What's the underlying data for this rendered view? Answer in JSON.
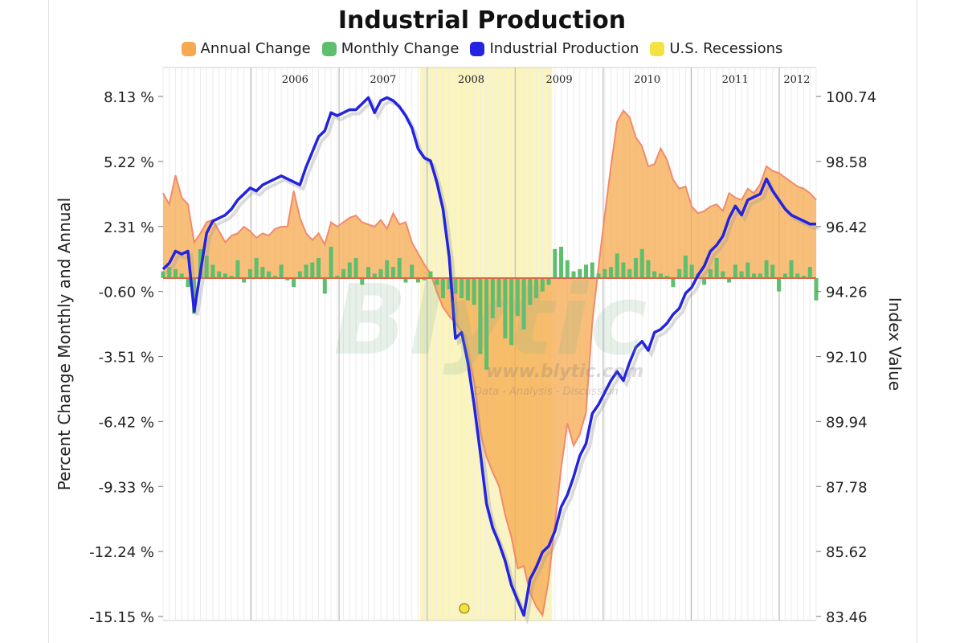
{
  "chart_data": {
    "type": "area",
    "title": "Industrial Production",
    "ylabel_left": "Percent Change Monthly and Annual",
    "ylabel_right": "Index Value",
    "legend": [
      {
        "name": "Annual Change",
        "color": "#f6a94e"
      },
      {
        "name": "Monthly Change",
        "color": "#5dbf6e"
      },
      {
        "name": "Industrial Production",
        "color": "#2323e0"
      },
      {
        "name": "U.S. Recessions",
        "color": "#f4e241"
      }
    ],
    "left_axis": {
      "ticks": [
        "8.13 %",
        "5.22 %",
        "2.31 %",
        "-0.60 %",
        "-3.51 %",
        "-6.42 %",
        "-9.33 %",
        "-12.24 %",
        "-15.15 %"
      ],
      "range": [
        -15.15,
        8.13
      ]
    },
    "right_axis": {
      "ticks": [
        "100.74",
        "98.58",
        "96.42",
        "94.26",
        "92.10",
        "89.94",
        "87.78",
        "85.62",
        "83.46"
      ],
      "range": [
        83.46,
        100.74
      ]
    },
    "x_range": [
      2005.0,
      2012.42
    ],
    "year_labels": [
      {
        "label": "2006",
        "x": 2006.5
      },
      {
        "label": "2007",
        "x": 2007.5
      },
      {
        "label": "2008",
        "x": 2008.5
      },
      {
        "label": "2009",
        "x": 2009.5
      },
      {
        "label": "2010",
        "x": 2010.5
      },
      {
        "label": "2011",
        "x": 2011.5
      },
      {
        "label": "2012",
        "x": 2012.2
      }
    ],
    "recession": {
      "start": 2007.92,
      "end": 2009.42
    },
    "series": [
      {
        "name": "Annual Change",
        "values": [
          3.8,
          3.3,
          4.6,
          3.6,
          3.3,
          1.6,
          2.0,
          2.5,
          2.6,
          2.1,
          1.6,
          1.9,
          2.0,
          2.3,
          2.1,
          1.8,
          2.0,
          1.9,
          2.2,
          2.3,
          2.3,
          3.9,
          2.7,
          2.0,
          1.7,
          2.0,
          1.5,
          2.5,
          2.3,
          2.5,
          2.7,
          2.8,
          2.5,
          2.4,
          2.3,
          2.6,
          2.2,
          2.9,
          2.4,
          2.5,
          1.6,
          1.1,
          0.6,
          0.2,
          -0.6,
          -1.3,
          -1.7,
          -2.0,
          -2.4,
          -3.5,
          -4.6,
          -6.9,
          -8.0,
          -8.7,
          -9.3,
          -10.6,
          -11.6,
          -13.0,
          -12.9,
          -14.1,
          -14.7,
          -15.1,
          -13.5,
          -11.0,
          -8.5,
          -6.5,
          -7.5,
          -7.0,
          -6.0,
          -2.0,
          0.5,
          2.8,
          5.0,
          7.0,
          7.5,
          7.2,
          6.3,
          5.9,
          5.0,
          5.1,
          5.8,
          5.3,
          4.4,
          4.0,
          4.1,
          3.2,
          2.9,
          3.0,
          3.2,
          3.3,
          3.0,
          3.8,
          3.6,
          3.5,
          4.0,
          3.8,
          4.2,
          5.0,
          4.8,
          4.7,
          4.5,
          4.3,
          4.1,
          4.0,
          3.8,
          3.5
        ]
      },
      {
        "name": "Monthly Change",
        "values": [
          0.3,
          0.5,
          0.4,
          0.2,
          -0.4,
          -1.6,
          1.3,
          1.0,
          0.6,
          0.3,
          0.2,
          0.1,
          0.8,
          -0.2,
          0.4,
          0.9,
          0.5,
          0.3,
          0.1,
          0.6,
          -0.1,
          -0.4,
          0.3,
          0.6,
          0.7,
          0.9,
          -0.7,
          1.4,
          0.1,
          0.4,
          0.7,
          0.9,
          -0.3,
          0.5,
          0.2,
          0.4,
          0.8,
          0.5,
          0.9,
          -0.2,
          0.6,
          -0.2,
          -0.1,
          0.3,
          -0.3,
          -0.9,
          -0.5,
          -0.7,
          -0.9,
          -1.0,
          -1.2,
          -3.4,
          -4.1,
          -1.8,
          -1.3,
          -2.7,
          -3.0,
          -1.7,
          -2.3,
          -1.2,
          -0.9,
          -0.6,
          -0.3,
          1.3,
          1.4,
          0.8,
          0.3,
          0.4,
          0.6,
          0.7,
          0.2,
          0.4,
          0.5,
          1.1,
          0.7,
          0.4,
          0.9,
          1.3,
          0.8,
          0.3,
          0.2,
          0.1,
          -0.4,
          0.4,
          1.0,
          0.6,
          0.2,
          -0.3,
          0.4,
          0.9,
          0.3,
          -0.2,
          0.6,
          0.3,
          0.7,
          0.2,
          0.2,
          0.8,
          0.6,
          -0.6,
          0.2,
          0.8,
          0.2,
          0.1,
          0.5,
          -1.0
        ]
      },
      {
        "name": "Industrial Production",
        "values": [
          95.0,
          95.2,
          95.6,
          95.5,
          95.6,
          93.6,
          94.9,
          96.2,
          96.6,
          96.7,
          96.8,
          97.0,
          97.3,
          97.5,
          97.7,
          97.6,
          97.8,
          97.9,
          98.0,
          98.1,
          98.0,
          97.9,
          97.8,
          98.4,
          98.9,
          99.4,
          99.6,
          100.2,
          100.1,
          100.2,
          100.3,
          100.3,
          100.5,
          100.7,
          100.2,
          100.6,
          100.7,
          100.6,
          100.4,
          100.1,
          99.7,
          99.0,
          98.7,
          98.6,
          97.9,
          97.0,
          95.4,
          92.7,
          92.9,
          91.9,
          90.5,
          88.9,
          87.2,
          86.4,
          85.9,
          85.3,
          84.5,
          84.0,
          83.5,
          84.7,
          85.1,
          85.6,
          85.8,
          86.3,
          87.1,
          87.5,
          88.1,
          88.8,
          89.2,
          90.2,
          90.5,
          90.9,
          91.3,
          91.6,
          91.3,
          91.9,
          92.4,
          92.6,
          92.3,
          92.9,
          93.0,
          93.2,
          93.5,
          93.7,
          94.2,
          94.4,
          94.8,
          95.1,
          95.6,
          95.8,
          96.1,
          96.7,
          97.1,
          96.8,
          97.3,
          97.4,
          97.5,
          98.0,
          97.6,
          97.3,
          97.0,
          96.8,
          96.7,
          96.6,
          96.5,
          96.5
        ]
      }
    ]
  }
}
